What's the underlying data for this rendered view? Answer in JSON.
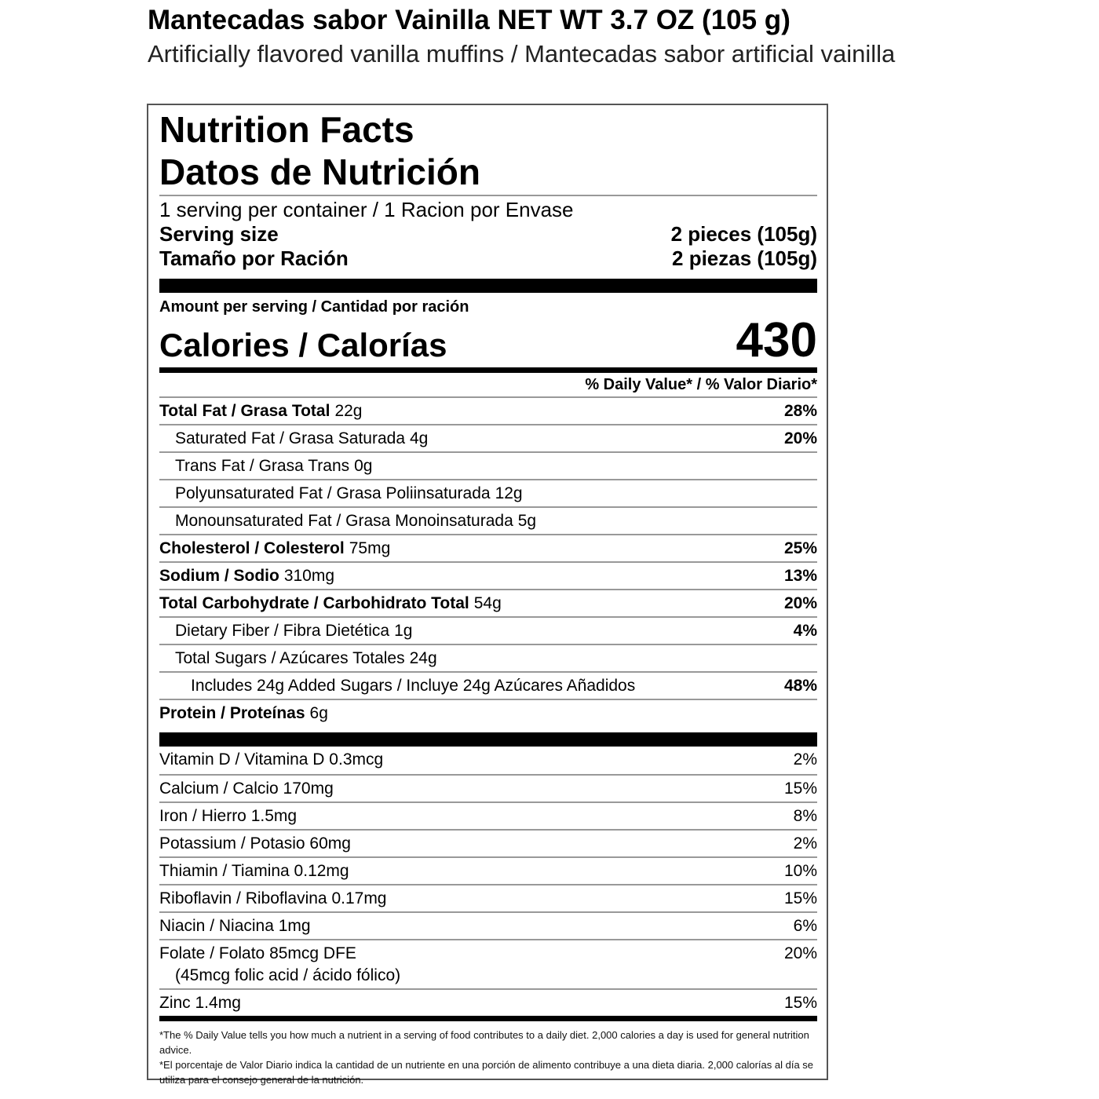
{
  "header": {
    "title": "Mantecadas sabor Vainilla NET WT 3.7 OZ (105 g)",
    "subtitle": "Artificially flavored vanilla muffins / Mantecadas sabor artificial vainilla"
  },
  "label": {
    "title_en": "Nutrition Facts",
    "title_es": "Datos de Nutrición",
    "servings": "1 serving per container / 1 Racion por Envase",
    "serving_size_label": "Serving size",
    "serving_size_value": "2 pieces (105g)",
    "serving_size_label_es": "Tamaño por Ración",
    "serving_size_value_es": "2 piezas (105g)",
    "amount_per_serving": "Amount per serving / Cantidad por ración",
    "calories_label": "Calories / Calorías",
    "calories_value": "430",
    "dv_header": "% Daily Value* / % Valor Diario*",
    "nutrients": [
      {
        "name": "Total Fat / Grasa Total",
        "amount": "22g",
        "dv": "28%",
        "level": 0
      },
      {
        "name": "Saturated Fat / Grasa Saturada",
        "amount": "4g",
        "dv": "20%",
        "level": 1
      },
      {
        "name": "Trans Fat / Grasa Trans",
        "amount": "0g",
        "dv": "",
        "level": 1
      },
      {
        "name": "Polyunsaturated Fat / Grasa Poliinsaturada",
        "amount": "12g",
        "dv": "",
        "level": 1
      },
      {
        "name": "Monounsaturated Fat / Grasa Monoinsaturada",
        "amount": "5g",
        "dv": "",
        "level": 1
      },
      {
        "name": "Cholesterol / Colesterol",
        "amount": "75mg",
        "dv": "25%",
        "level": 0
      },
      {
        "name": "Sodium / Sodio",
        "amount": "310mg",
        "dv": "13%",
        "level": 0
      },
      {
        "name": "Total Carbohydrate / Carbohidrato Total",
        "amount": "54g",
        "dv": "20%",
        "level": 0
      },
      {
        "name": "Dietary Fiber / Fibra Dietética",
        "amount": "1g",
        "dv": "4%",
        "level": 1
      },
      {
        "name": "Total Sugars / Azúcares Totales",
        "amount": "24g",
        "dv": "",
        "level": 1
      },
      {
        "name": "Includes 24g Added Sugars / Incluye 24g Azúcares Añadidos",
        "amount": "",
        "dv": "48%",
        "level": 2
      },
      {
        "name": "Protein / Proteínas",
        "amount": "6g",
        "dv": "",
        "level": 0
      }
    ],
    "vitamins": [
      {
        "name": "Vitamin D / Vitamina D 0.3mcg",
        "dv": "2%"
      },
      {
        "name": "Calcium / Calcio 170mg",
        "dv": "15%"
      },
      {
        "name": "Iron / Hierro 1.5mg",
        "dv": "8%"
      },
      {
        "name": "Potassium / Potasio 60mg",
        "dv": "2%"
      },
      {
        "name": "Thiamin / Tiamina 0.12mg",
        "dv": "10%"
      },
      {
        "name": "Riboflavin / Riboflavina 0.17mg",
        "dv": "15%"
      },
      {
        "name": "Niacin / Niacina 1mg",
        "dv": "6%"
      },
      {
        "name": "Folate / Folato 85mcg DFE",
        "sub": "(45mcg folic acid / ácido fólico)",
        "dv": "20%"
      },
      {
        "name": "Zinc 1.4mg",
        "dv": "15%"
      }
    ],
    "footnote_en": "*The % Daily Value tells you how much a nutrient in a serving of food contributes to a daily diet. 2,000 calories a day is used for general nutrition advice.",
    "footnote_es": "*El porcentaje de Valor Diario indica la cantidad de un nutriente en una porción de alimento contribuye a una dieta diaria. 2,000 calorías al día se utiliza para el consejo general de la nutrición."
  }
}
